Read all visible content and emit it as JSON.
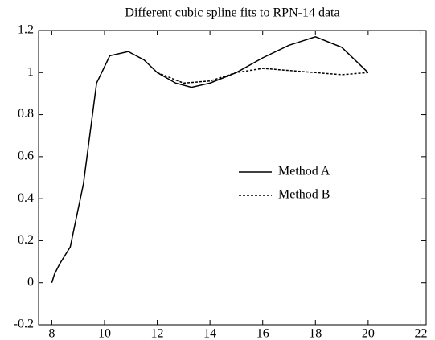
{
  "chart_data": {
    "type": "line",
    "title": "Different cubic spline fits to RPN-14 data",
    "series": [
      {
        "name": "Method A",
        "color": "#000000",
        "dash": "none",
        "x": [
          8,
          8.1,
          8.3,
          8.7,
          9.2,
          9.7,
          10.2,
          10.9,
          11.5,
          12,
          12.7,
          13.3,
          14,
          15,
          16,
          17,
          18,
          19,
          20
        ],
        "values": [
          0,
          0.04,
          0.09,
          0.17,
          0.47,
          0.95,
          1.08,
          1.1,
          1.06,
          1.0,
          0.95,
          0.93,
          0.95,
          1.0,
          1.07,
          1.13,
          1.17,
          1.12,
          1.0
        ]
      },
      {
        "name": "Method B",
        "color": "#000000",
        "dash": "3,2",
        "x": [
          12,
          13,
          14,
          15,
          16,
          17,
          18,
          19,
          20
        ],
        "values": [
          1.0,
          0.95,
          0.96,
          1.0,
          1.02,
          1.01,
          1.0,
          0.99,
          1.0
        ]
      }
    ],
    "xlim": [
      7.5,
      22.2
    ],
    "xticks": [
      8,
      10,
      12,
      14,
      16,
      18,
      20,
      22
    ],
    "ylim": [
      -0.2,
      1.2
    ],
    "yticks": [
      -0.2,
      0,
      0.2,
      0.4,
      0.6,
      0.8,
      1,
      1.2
    ]
  }
}
